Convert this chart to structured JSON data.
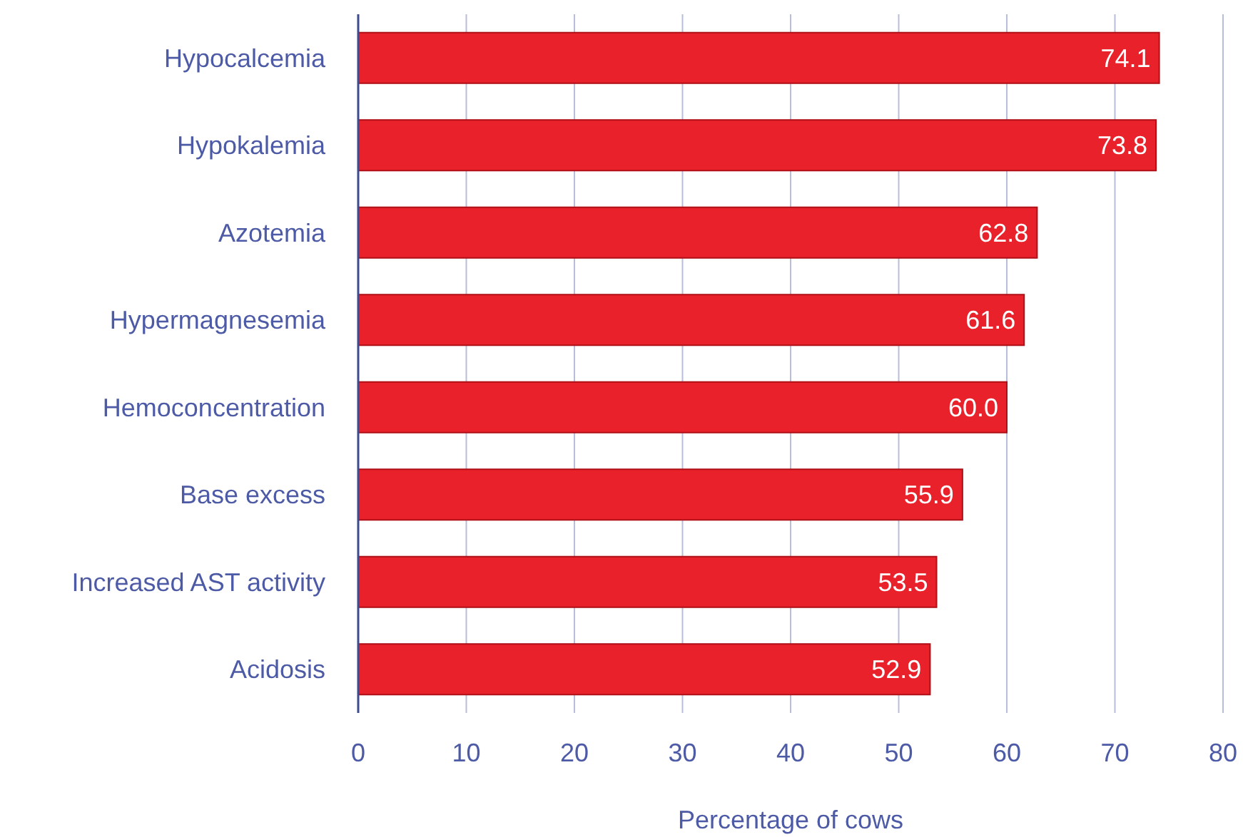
{
  "chart_data": {
    "type": "bar",
    "orientation": "horizontal",
    "xlabel": "Percentage of cows",
    "categories": [
      "Hypocalcemia",
      "Hypokalemia",
      "Azotemia",
      "Hypermagnesemia",
      "Hemoconcentration",
      "Base excess",
      "Increased AST activity",
      "Acidosis"
    ],
    "values": [
      74.1,
      73.8,
      62.8,
      61.6,
      60.0,
      55.9,
      53.5,
      52.9
    ],
    "value_labels": [
      "74.1",
      "73.8",
      "62.8",
      "61.6",
      "60.0",
      "55.9",
      "53.5",
      "52.9"
    ],
    "color": "#e8212a",
    "xlim": [
      0,
      80
    ],
    "xticks": [
      0,
      10,
      20,
      30,
      40,
      50,
      60,
      70,
      80
    ],
    "grid": "x"
  }
}
